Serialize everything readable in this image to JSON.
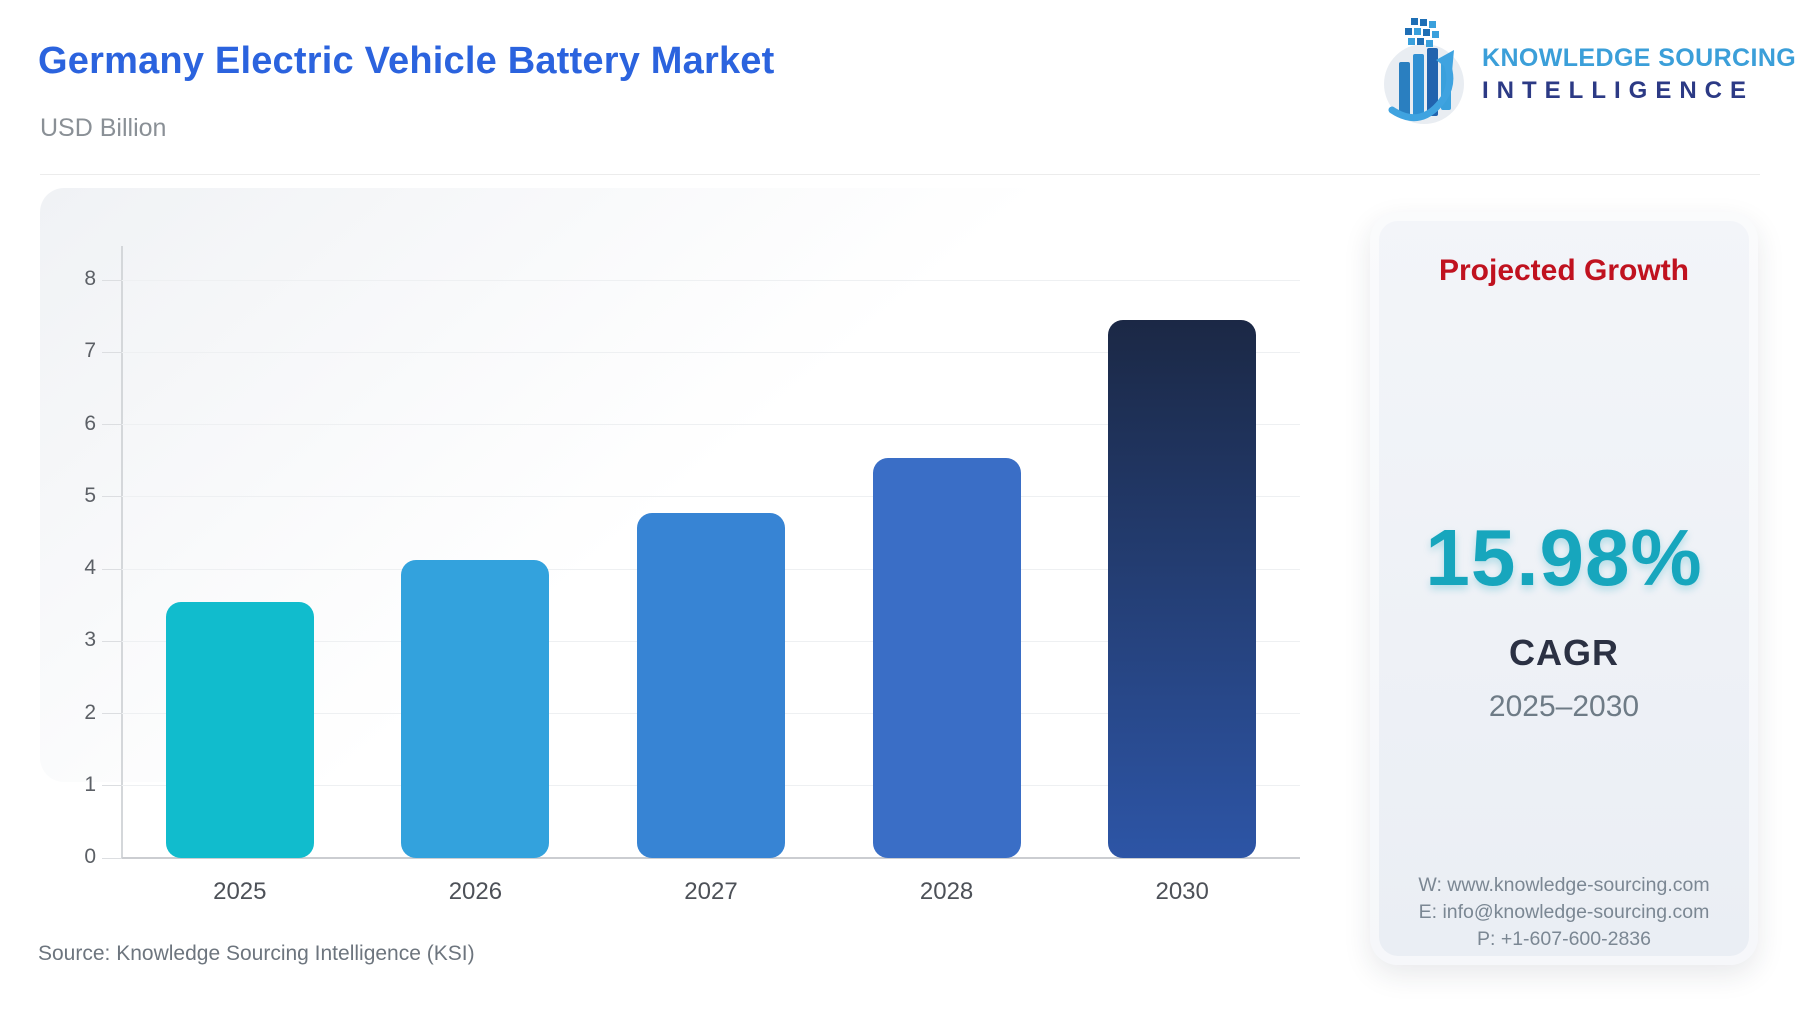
{
  "header": {
    "title": "Germany Electric Vehicle Battery Market",
    "subtitle": "USD Billion"
  },
  "logo": {
    "brand_line1": "KNOWLEDGE SOURCING",
    "brand_line2": "INTELLIGENCE",
    "icon": "bar-chart-globe-arrow-logo",
    "colors": {
      "line1": "#3b9fd9",
      "line2": "#2c3a85"
    }
  },
  "chart_data": {
    "type": "bar",
    "title": "Germany Electric Vehicle Battery Market",
    "xlabel": "",
    "ylabel": "USD Billion",
    "categories": [
      "2025",
      "2026",
      "2027",
      "2028",
      "2030"
    ],
    "values": [
      3.55,
      4.12,
      4.78,
      5.54,
      7.45
    ],
    "bar_colors": [
      "#11bccd",
      "#33a2dd",
      "#3784d4",
      "#3a6ec6",
      [
        "#1b2845",
        "#2d55a6"
      ]
    ],
    "ylim": [
      0,
      8
    ],
    "yticks": [
      0,
      1,
      2,
      3,
      4,
      5,
      6,
      7,
      8
    ],
    "grid": true,
    "legend": false
  },
  "panel": {
    "heading": "Projected Growth",
    "cagr_value": "15.98%",
    "cagr_label": "CAGR",
    "period": "2025–2030",
    "contact": {
      "website": "W: www.knowledge-sourcing.com",
      "email": "E: info@knowledge-sourcing.com",
      "phone": "P: +1-607-600-2836"
    },
    "colors": {
      "heading": "#c0121f",
      "cagr_value": "#17a6bd"
    }
  },
  "footer": {
    "source": "Source: Knowledge Sourcing Intelligence (KSI)"
  }
}
